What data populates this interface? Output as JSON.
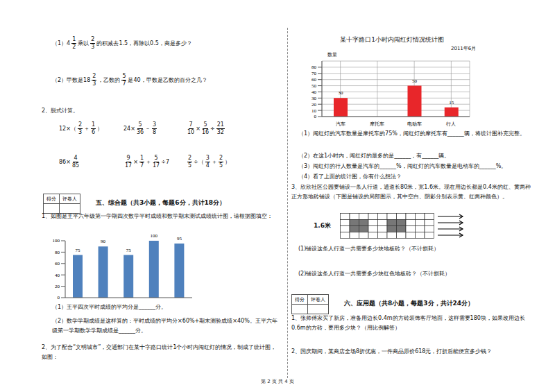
{
  "left": {
    "q1": [
      "（1）",
      [
        "4",
        "1",
        "2"
      ],
      "乘以",
      [
        "2",
        "3"
      ],
      "的积减去1.5，再除以0.5，商是多少？"
    ],
    "q2": [
      "（2）甲数是",
      [
        "18",
        "2",
        "3"
      ],
      "，乙数的",
      [
        "5",
        "7"
      ],
      "是40，甲数是乙数的百分之几？"
    ],
    "calc_title": "2、脱式计算。",
    "calc_rows": [
      [
        [
          "12×（",
          [
            "2",
            "3"
          ],
          "＋",
          [
            "1",
            "6"
          ],
          "）"
        ],
        [
          "24×",
          [
            "5",
            "36"
          ],
          "－",
          [
            "3",
            "8"
          ]
        ],
        [
          [
            "7",
            "10"
          ],
          "×",
          [
            "5",
            "16"
          ],
          "÷",
          [
            "21",
            "32"
          ]
        ]
      ],
      [
        [
          "86×",
          [
            "4",
            "85"
          ]
        ],
        [
          [
            "9",
            "17"
          ],
          "×",
          [
            "1",
            "7"
          ],
          "＋",
          [
            "5",
            "17"
          ],
          "÷7"
        ],
        [
          [
            "2",
            "5"
          ],
          "÷（",
          [
            "3",
            "4"
          ],
          "＋",
          [
            "2",
            "5"
          ],
          "）"
        ]
      ]
    ],
    "score_box": [
      "得分",
      "评卷人"
    ],
    "section": "五、综合题（共3小题，每题6分，共计18分）",
    "p1": "1、如图是王平六年级第一学期四次数学平时成绩和数学期末测试成绩统计图，请根据图填空：",
    "p1_q1": "（1）王平四次平时成绩的平均分是______分。",
    "p1_q2": "（2）数学学期成绩是这样算的：平时成绩的平均分×60%+期末测验成绩×40%。王平六年级第一学期数学学期成绩是______分。",
    "p2": "2、为了配合“文明城市”，交通部门在某十字路口统计1个小时内闯红灯的情况，制成了统计图，如图："
  },
  "right": {
    "q1": "（1）闯红灯的汽车数量是摩托车的75%，闯红灯的摩托车有______辆，将统计图补充完整。",
    "q2": "（2）在这1小时内，闯红灯的最多的是______，有______辆。",
    "q3": "（3）闯红灯的行人数量是汽车的______%，闯红灯的汽车数量是电动车的______%。",
    "q4": "（4）看了上面的统计图，你有什么想法？",
    "p3": "3、欣欣社区公园要铺设一条人行道，通道长80米，宽1.6米。现在用边长都是0.4米的红、黄两种正方形地砖铺设（下图是铺设的局部图示，其中空白、阴影分别表示黄、红两种颜色）。",
    "diagram_label": "1.6米",
    "p3_q1": "(1)铺设这条人行道一共需要多少块地板砖？（不计损耗）",
    "p3_q2": "(2)铺设这条人行道一共需要多少块红色地板砖？（不计损耗）",
    "score_box": [
      "得分",
      "评卷人"
    ],
    "section": "六、应用题（共8小题，每题3分，共计24分）",
    "a1": "1、张师傅家买了新房，准备用边长0.4m的方砖装饰客厅地面，这样需要180块，如果改用边长0.6m的方砖，要用多少块？（用比例解答）",
    "a2": "2、国庆期间，某商店全场8折优惠，一件商品原价618元，打折后能便宜多少钱？"
  },
  "footer": "第 2 页 共 4 页",
  "chart_data": [
    {
      "type": "bar",
      "values": [
        75,
        90,
        75,
        100,
        95
      ],
      "color": "#4f81bd",
      "ylim": [
        0,
        100
      ],
      "yticks": [
        0,
        20,
        40,
        60,
        80,
        100
      ],
      "data_labels": true,
      "tick_labels": "y"
    },
    {
      "type": "bar",
      "title": "某十字路口1小时内闯红灯情况统计图",
      "subtitle": "2011年6月",
      "y_label": "数量",
      "categories": [
        "汽车",
        "摩托车",
        "电动车",
        "行人"
      ],
      "values": [
        30,
        null,
        50,
        15
      ],
      "color": "#e8262a",
      "ylim": [
        0,
        90
      ],
      "yticks": [
        0,
        10,
        20,
        30,
        40,
        50,
        60,
        70,
        80
      ],
      "grid": true,
      "data_labels": true
    }
  ]
}
